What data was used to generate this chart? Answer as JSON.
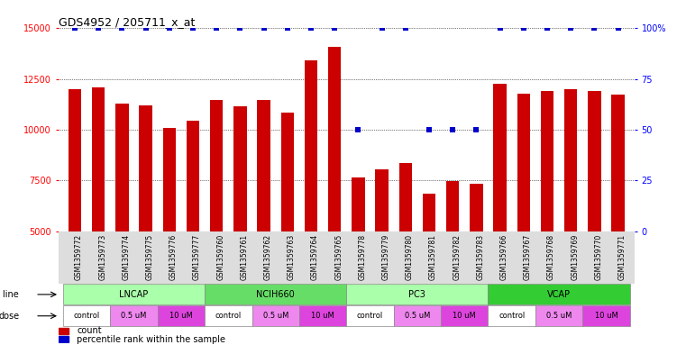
{
  "title": "GDS4952 / 205711_x_at",
  "samples": [
    "GSM1359772",
    "GSM1359773",
    "GSM1359774",
    "GSM1359775",
    "GSM1359776",
    "GSM1359777",
    "GSM1359760",
    "GSM1359761",
    "GSM1359762",
    "GSM1359763",
    "GSM1359764",
    "GSM1359765",
    "GSM1359778",
    "GSM1359779",
    "GSM1359780",
    "GSM1359781",
    "GSM1359782",
    "GSM1359783",
    "GSM1359766",
    "GSM1359767",
    "GSM1359768",
    "GSM1359769",
    "GSM1359770",
    "GSM1359771"
  ],
  "counts": [
    12000,
    12100,
    11300,
    11200,
    10100,
    10450,
    11450,
    11150,
    11450,
    10850,
    13400,
    14100,
    7650,
    8050,
    8350,
    6850,
    7450,
    7350,
    12250,
    11800,
    11900,
    12000,
    11900,
    11750
  ],
  "percentile_ranks": [
    100,
    100,
    100,
    100,
    100,
    100,
    100,
    100,
    100,
    100,
    100,
    100,
    50,
    100,
    100,
    50,
    50,
    50,
    100,
    100,
    100,
    100,
    100,
    100
  ],
  "bar_color": "#cc0000",
  "dot_color": "#0000cc",
  "ylim_left": [
    5000,
    15000
  ],
  "ylim_right": [
    0,
    100
  ],
  "yticks_left": [
    5000,
    7500,
    10000,
    12500,
    15000
  ],
  "yticks_right": [
    0,
    25,
    50,
    75,
    100
  ],
  "yticklabels_right": [
    "0",
    "25",
    "50",
    "75",
    "100%"
  ],
  "cell_lines": [
    {
      "name": "LNCAP",
      "start": 0,
      "end": 6,
      "color": "#aaffaa"
    },
    {
      "name": "NCIH660",
      "start": 6,
      "end": 12,
      "color": "#66dd66"
    },
    {
      "name": "PC3",
      "start": 12,
      "end": 18,
      "color": "#aaffaa"
    },
    {
      "name": "VCAP",
      "start": 18,
      "end": 24,
      "color": "#33cc33"
    }
  ],
  "doses": [
    {
      "label": "control",
      "start": 0,
      "end": 2,
      "color": "#ffffff"
    },
    {
      "label": "0.5 uM",
      "start": 2,
      "end": 4,
      "color": "#ee88ee"
    },
    {
      "label": "10 uM",
      "start": 4,
      "end": 6,
      "color": "#dd44dd"
    },
    {
      "label": "control",
      "start": 6,
      "end": 8,
      "color": "#ffffff"
    },
    {
      "label": "0.5 uM",
      "start": 8,
      "end": 10,
      "color": "#ee88ee"
    },
    {
      "label": "10 uM",
      "start": 10,
      "end": 12,
      "color": "#dd44dd"
    },
    {
      "label": "control",
      "start": 12,
      "end": 14,
      "color": "#ffffff"
    },
    {
      "label": "0.5 uM",
      "start": 14,
      "end": 16,
      "color": "#ee88ee"
    },
    {
      "label": "10 uM",
      "start": 16,
      "end": 18,
      "color": "#dd44dd"
    },
    {
      "label": "control",
      "start": 18,
      "end": 20,
      "color": "#ffffff"
    },
    {
      "label": "0.5 uM",
      "start": 20,
      "end": 22,
      "color": "#ee88ee"
    },
    {
      "label": "10 uM",
      "start": 22,
      "end": 24,
      "color": "#dd44dd"
    }
  ],
  "grid_color": "#000000",
  "bg_color": "#ffffff",
  "bar_width": 0.55,
  "legend_count_color": "#cc0000",
  "legend_dot_color": "#0000cc",
  "sample_bg_color": "#dddddd"
}
